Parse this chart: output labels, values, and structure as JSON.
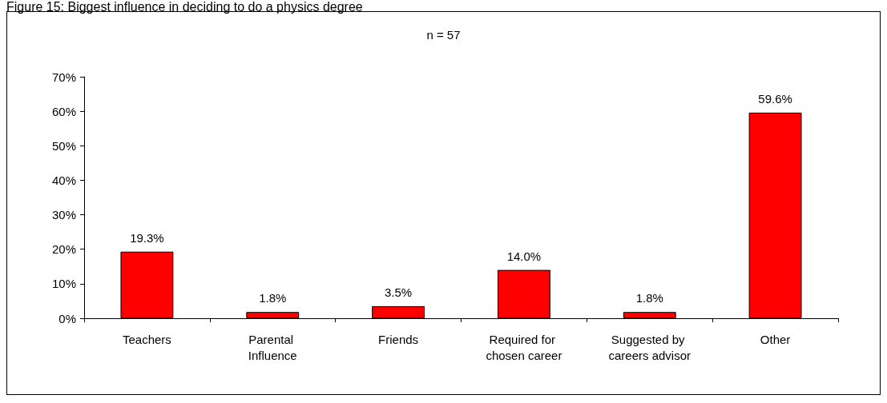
{
  "chart_data": {
    "type": "bar",
    "title": "Figure 15: Biggest influence in deciding to do a physics degree",
    "subtitle": "n = 57",
    "categories": [
      "Teachers",
      "Parental Influence",
      "Friends",
      "Required for chosen career",
      "Suggested by careers advisor",
      "Other"
    ],
    "values": [
      19.3,
      1.8,
      3.5,
      14.0,
      1.8,
      59.6
    ],
    "value_labels": [
      "19.3%",
      "1.8%",
      "3.5%",
      "14.0%",
      "1.8%",
      "59.6%"
    ],
    "color": "#ff0000",
    "ylim": [
      0,
      70
    ],
    "yticks": [
      {
        "value": 0,
        "label": "0%"
      },
      {
        "value": 10,
        "label": "10%"
      },
      {
        "value": 20,
        "label": "20%"
      },
      {
        "value": 30,
        "label": "30%"
      },
      {
        "value": 40,
        "label": "40%"
      },
      {
        "value": 50,
        "label": "50%"
      },
      {
        "value": 60,
        "label": "60%"
      },
      {
        "value": 70,
        "label": "70%"
      }
    ],
    "grid": false
  }
}
